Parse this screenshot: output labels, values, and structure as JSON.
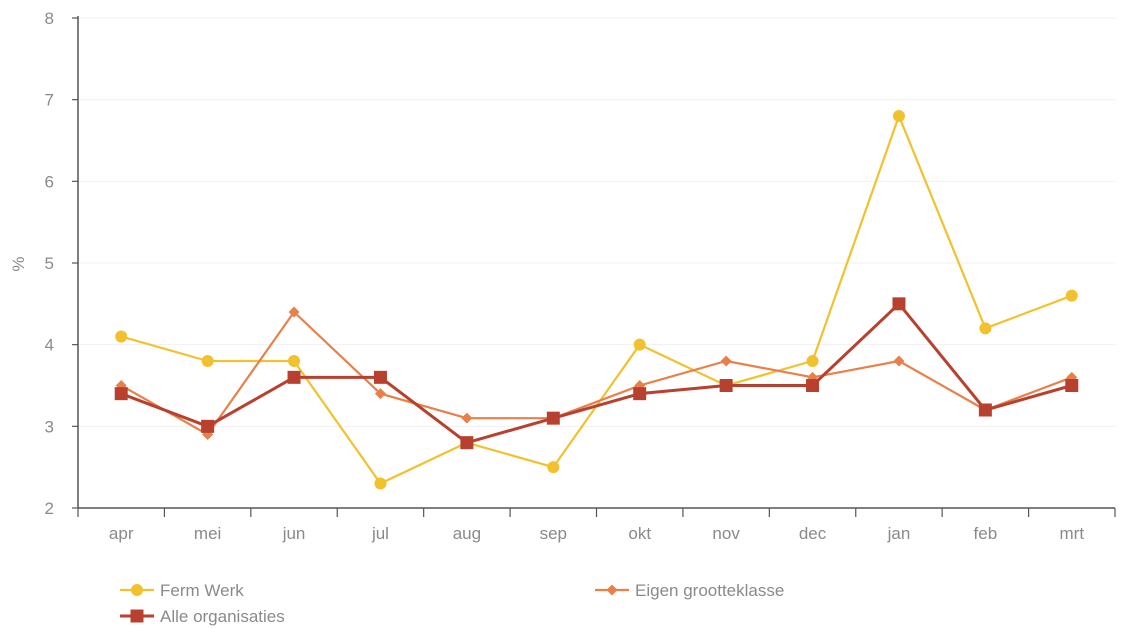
{
  "chart_data": {
    "type": "line",
    "title": "",
    "xlabel": "",
    "ylabel": "%",
    "ylim": [
      2,
      8
    ],
    "yticks": [
      2,
      3,
      4,
      5,
      6,
      7,
      8
    ],
    "grid": true,
    "legend_position": "bottom",
    "categories": [
      "apr",
      "mei",
      "jun",
      "jul",
      "aug",
      "sep",
      "okt",
      "nov",
      "dec",
      "jan",
      "feb",
      "mrt"
    ],
    "series": [
      {
        "name": "Ferm Werk",
        "marker": "circle",
        "color": "#f2c12e",
        "values": [
          4.1,
          3.8,
          3.8,
          2.3,
          2.8,
          2.5,
          4.0,
          3.5,
          3.8,
          6.8,
          4.2,
          4.6
        ]
      },
      {
        "name": "Eigen grootteklasse",
        "marker": "diamond",
        "color": "#e8804a",
        "values": [
          3.5,
          2.9,
          4.4,
          3.4,
          3.1,
          3.1,
          3.5,
          3.8,
          3.6,
          3.8,
          3.2,
          3.6
        ]
      },
      {
        "name": "Alle organisaties",
        "marker": "square",
        "color": "#b8402e",
        "values": [
          3.4,
          3.0,
          3.6,
          3.6,
          2.8,
          3.1,
          3.4,
          3.5,
          3.5,
          4.5,
          3.2,
          3.5
        ]
      }
    ]
  }
}
